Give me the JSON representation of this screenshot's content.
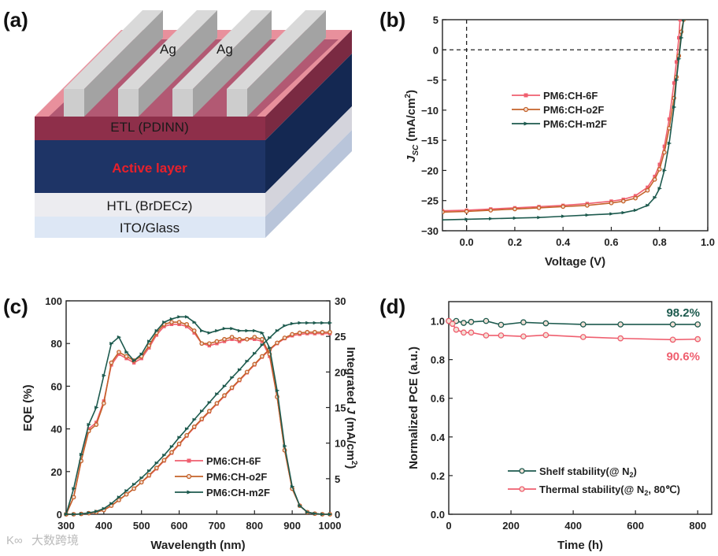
{
  "figure": {
    "panel_labels": [
      "(a)",
      "(b)",
      "(c)",
      "(d)"
    ]
  },
  "schematic": {
    "electrode_labels": [
      "Ag",
      "Ag"
    ],
    "layers": [
      "ETL (PDINN)",
      "Active layer",
      "HTL (BrDECz)",
      "ITO/Glass"
    ],
    "colors": {
      "active_label": "#e8202a"
    }
  },
  "watermark": {
    "logo": "K∞",
    "text": "大数跨境"
  },
  "chart_data": [
    {
      "panel": "(b)",
      "type": "line",
      "xlabel": "Voltage (V)",
      "ylabel": {
        "main": "J",
        "sub": "SC",
        "unit": " (mA/cm",
        "sup": "2",
        "close": ")"
      },
      "xlim": [
        -0.1,
        1.0
      ],
      "ylim": [
        -30,
        5
      ],
      "xticks": [
        0.0,
        0.2,
        0.4,
        0.6,
        0.8,
        1.0
      ],
      "xticklabels": [
        "0.0",
        "0.2",
        "0.4",
        "0.6",
        "0.8",
        "1.0"
      ],
      "yticks": [
        5,
        0,
        -5,
        -10,
        -15,
        -20,
        -25,
        -30
      ],
      "yticklabels": [
        "5",
        "0",
        "−5",
        "−10",
        "−15",
        "−20",
        "−25",
        "−30"
      ],
      "reference_lines": {
        "x": 0,
        "y": 0
      },
      "legend": "center-left",
      "series": [
        {
          "name": "PM6:CH-6F",
          "color": "#ef5f6f",
          "marker": "square",
          "x": [
            -0.1,
            0,
            0.1,
            0.2,
            0.3,
            0.4,
            0.5,
            0.6,
            0.65,
            0.7,
            0.75,
            0.78,
            0.8,
            0.82,
            0.84,
            0.86,
            0.87,
            0.88,
            0.885
          ],
          "y": [
            -26.7,
            -26.6,
            -26.4,
            -26.2,
            -26.0,
            -25.8,
            -25.5,
            -25.1,
            -24.8,
            -24.2,
            -22.8,
            -21,
            -19,
            -16,
            -11.5,
            -5.5,
            -2,
            2,
            5
          ]
        },
        {
          "name": "PM6:CH-o2F",
          "color": "#c4622a",
          "marker": "circle",
          "x": [
            -0.1,
            0,
            0.1,
            0.2,
            0.3,
            0.4,
            0.5,
            0.6,
            0.65,
            0.7,
            0.75,
            0.78,
            0.8,
            0.82,
            0.84,
            0.86,
            0.87,
            0.88,
            0.89,
            0.9
          ],
          "y": [
            -26.9,
            -26.8,
            -26.6,
            -26.4,
            -26.2,
            -26.0,
            -25.8,
            -25.4,
            -25.1,
            -24.6,
            -23.3,
            -21.5,
            -19.8,
            -17,
            -13,
            -8,
            -4.5,
            -1,
            3,
            5
          ]
        },
        {
          "name": "PM6:CH-m2F",
          "color": "#1d5a4e",
          "marker": "triangle",
          "x": [
            -0.1,
            0,
            0.1,
            0.2,
            0.3,
            0.4,
            0.5,
            0.6,
            0.65,
            0.7,
            0.75,
            0.78,
            0.8,
            0.82,
            0.84,
            0.86,
            0.87,
            0.88,
            0.89,
            0.9
          ],
          "y": [
            -28.2,
            -28.1,
            -28.0,
            -27.9,
            -27.8,
            -27.6,
            -27.4,
            -27.2,
            -27.0,
            -26.6,
            -25.8,
            -24.5,
            -23,
            -20,
            -15.5,
            -9.5,
            -5,
            -1.5,
            2,
            5
          ]
        }
      ]
    },
    {
      "panel": "(c)",
      "type": "line",
      "xlabel": "Wavelength (nm)",
      "ylabel": "EQE (%)",
      "y2label": {
        "main": "Integrated ",
        "italic": "J",
        "unit": " (mA/cm",
        "sup": "2",
        "close": ")"
      },
      "xlim": [
        300,
        1000
      ],
      "ylim": [
        0,
        100
      ],
      "y2lim": [
        0,
        30
      ],
      "xticks": [
        300,
        400,
        500,
        600,
        700,
        800,
        900,
        1000
      ],
      "xticklabels": [
        "300",
        "400",
        "500",
        "600",
        "700",
        "800",
        "900",
        "1000"
      ],
      "yticks": [
        0,
        20,
        40,
        60,
        80,
        100
      ],
      "yticklabels": [
        "0",
        "20",
        "40",
        "60",
        "80",
        "100"
      ],
      "y2ticks": [
        0,
        5,
        10,
        15,
        20,
        25,
        30
      ],
      "y2ticklabels": [
        "0",
        "5",
        "10",
        "15",
        "20",
        "25",
        "30"
      ],
      "legend": "bottom-center",
      "x": [
        300,
        320,
        340,
        360,
        380,
        400,
        420,
        440,
        460,
        480,
        500,
        520,
        540,
        560,
        580,
        600,
        620,
        640,
        660,
        680,
        700,
        720,
        740,
        760,
        780,
        800,
        820,
        840,
        860,
        880,
        900,
        920,
        940,
        960,
        980,
        1000
      ],
      "series": [
        {
          "name": "PM6:CH-6F",
          "color": "#ef5f6f",
          "marker": "square",
          "eqe": [
            0,
            8,
            25,
            40,
            43,
            53,
            70,
            75,
            73,
            71,
            73,
            78,
            84,
            88,
            89,
            89,
            88,
            85,
            80,
            79,
            80,
            81,
            82,
            81,
            82,
            82,
            81,
            74,
            55,
            30,
            12,
            4,
            1,
            0.3,
            0,
            0
          ],
          "integrated_j": [
            0,
            0,
            0.05,
            0.15,
            0.3,
            0.6,
            1.2,
            2,
            2.8,
            3.6,
            4.5,
            5.4,
            6.4,
            7.5,
            8.6,
            9.8,
            11,
            12.2,
            13.3,
            14.4,
            15.5,
            16.6,
            17.7,
            18.8,
            19.9,
            21,
            22.1,
            23.1,
            24,
            24.7,
            25.1,
            25.3,
            25.4,
            25.4,
            25.4,
            25.4
          ]
        },
        {
          "name": "PM6:CH-o2F",
          "color": "#c4622a",
          "marker": "circle",
          "eqe": [
            0,
            8,
            25,
            39,
            42,
            52,
            71,
            76,
            74,
            72,
            74,
            79,
            85,
            89,
            90,
            90,
            89,
            86,
            80,
            80,
            81,
            82,
            83,
            82,
            82,
            83,
            82,
            75,
            55,
            30,
            12,
            4,
            1,
            0.3,
            0,
            0
          ],
          "integrated_j": [
            0,
            0,
            0.05,
            0.15,
            0.3,
            0.6,
            1.2,
            2,
            2.8,
            3.6,
            4.5,
            5.5,
            6.5,
            7.6,
            8.7,
            9.9,
            11.1,
            12.3,
            13.4,
            14.5,
            15.6,
            16.7,
            17.8,
            18.9,
            20,
            21.1,
            22.2,
            23.2,
            24.1,
            24.8,
            25.3,
            25.5,
            25.6,
            25.6,
            25.6,
            25.6
          ]
        },
        {
          "name": "PM6:CH-m2F",
          "color": "#1d5a4e",
          "marker": "triangle",
          "eqe": [
            0,
            12,
            28,
            42,
            50,
            65,
            80,
            83,
            76,
            72,
            75,
            81,
            86,
            90,
            91.5,
            92.5,
            92.5,
            90,
            86,
            85,
            86,
            87,
            87,
            86,
            86,
            86,
            85,
            78,
            58,
            32,
            13,
            4,
            1,
            0.3,
            0,
            0
          ],
          "integrated_j": [
            0,
            0,
            0.05,
            0.2,
            0.4,
            0.8,
            1.5,
            2.4,
            3.3,
            4.2,
            5.1,
            6.1,
            7.2,
            8.3,
            9.5,
            10.8,
            12,
            13.3,
            14.5,
            15.7,
            16.9,
            18,
            19.2,
            20.3,
            21.5,
            22.6,
            23.8,
            24.8,
            25.8,
            26.5,
            26.8,
            26.9,
            26.9,
            26.9,
            26.9,
            26.9
          ]
        }
      ]
    },
    {
      "panel": "(d)",
      "type": "line",
      "xlabel": "Time (h)",
      "ylabel": "Normalized PCE (a.u.)",
      "xlim": [
        0,
        845
      ],
      "ylim": [
        0,
        1.1
      ],
      "xticks": [
        0,
        200,
        400,
        600,
        800
      ],
      "xticklabels": [
        "0",
        "200",
        "400",
        "600",
        "800"
      ],
      "yticks": [
        0,
        0.2,
        0.4,
        0.6,
        0.8,
        1.0
      ],
      "yticklabels": [
        "0.0",
        "0.2",
        "0.4",
        "0.6",
        "0.8",
        "1.0"
      ],
      "legend": "bottom-right",
      "series": [
        {
          "name": "Shelf stability(@ N",
          "sub": "2",
          "tail": ")",
          "color": "#1d5a4e",
          "marker": "circle",
          "x": [
            0,
            24,
            48,
            72,
            120,
            168,
            240,
            312,
            432,
            552,
            720,
            800
          ],
          "y": [
            1.0,
            1.0,
            0.99,
            0.995,
            1.0,
            0.98,
            0.993,
            0.988,
            0.982,
            0.982,
            0.982,
            0.982
          ],
          "annotation": "98.2%"
        },
        {
          "name": "Thermal stability(@ N",
          "sub": "2",
          "tail": ", 80℃)",
          "color": "#ef5f6f",
          "marker": "circle",
          "x": [
            0,
            12,
            24,
            48,
            72,
            120,
            168,
            240,
            312,
            432,
            552,
            720,
            800
          ],
          "y": [
            1.0,
            0.985,
            0.955,
            0.94,
            0.94,
            0.925,
            0.925,
            0.92,
            0.927,
            0.917,
            0.91,
            0.903,
            0.906
          ],
          "annotation": "90.6%"
        }
      ]
    }
  ]
}
